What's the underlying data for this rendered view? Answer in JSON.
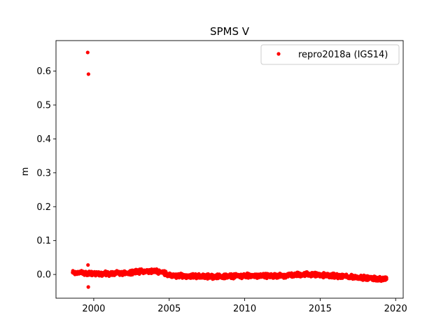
{
  "chart_data": {
    "type": "scatter",
    "title": "SPMS V",
    "xlabel": "",
    "ylabel": "m",
    "xlim": [
      1997.5,
      2020.5
    ],
    "ylim": [
      -0.07,
      0.69
    ],
    "x_ticks": [
      2000,
      2005,
      2010,
      2015,
      2020
    ],
    "x_tick_labels": [
      "2000",
      "2005",
      "2010",
      "2015",
      "2020"
    ],
    "y_ticks": [
      0.0,
      0.1,
      0.2,
      0.3,
      0.4,
      0.5,
      0.6
    ],
    "y_tick_labels": [
      "0.0",
      "0.1",
      "0.2",
      "0.3",
      "0.4",
      "0.5",
      "0.6"
    ],
    "grid": false,
    "legend_position": "top-right",
    "series": [
      {
        "name": "repro2018a (IGS14)",
        "color": "#ff0000",
        "marker": "circle",
        "outliers": [
          {
            "x": 1999.6,
            "y": 0.655
          },
          {
            "x": 1999.65,
            "y": 0.591
          },
          {
            "x": 1999.62,
            "y": 0.028
          },
          {
            "x": 1999.64,
            "y": -0.037
          }
        ],
        "trend": [
          {
            "x": 1998.6,
            "y": 0.006
          },
          {
            "x": 2000.0,
            "y": 0.003
          },
          {
            "x": 2001.0,
            "y": 0.002
          },
          {
            "x": 2002.0,
            "y": 0.004
          },
          {
            "x": 2003.0,
            "y": 0.009
          },
          {
            "x": 2004.0,
            "y": 0.01
          },
          {
            "x": 2004.6,
            "y": 0.007
          },
          {
            "x": 2005.1,
            "y": -0.004
          },
          {
            "x": 2006.0,
            "y": -0.004
          },
          {
            "x": 2008.0,
            "y": -0.006
          },
          {
            "x": 2010.0,
            "y": -0.004
          },
          {
            "x": 2012.0,
            "y": -0.005
          },
          {
            "x": 2014.0,
            "y": 0.001
          },
          {
            "x": 2016.0,
            "y": -0.004
          },
          {
            "x": 2018.0,
            "y": -0.01
          },
          {
            "x": 2019.4,
            "y": -0.014
          }
        ],
        "spread": 0.008
      }
    ]
  }
}
